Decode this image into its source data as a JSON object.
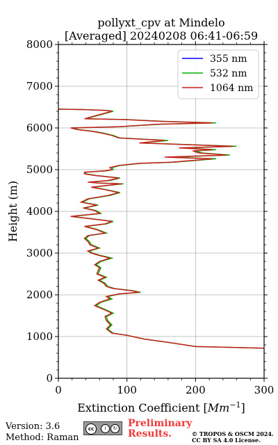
{
  "title_line1": "pollyxt_cpv at Mindelo",
  "title_line2": "[Averaged] 20240208 06:41-06:59",
  "footer": {
    "version": "Version: 3.6",
    "method": "Method: Raman",
    "preliminary": [
      "Preliminary",
      "Results."
    ],
    "copyright": [
      "© TROPOS & OSCM 2024.",
      "CC BY SA 4.0 License."
    ],
    "license_badge_icon": "cc-by-sa-icon"
  },
  "chart_data": {
    "type": "line",
    "xlabel": "Extinction Coefficient [Mm⁻¹]",
    "ylabel": "Height (m)",
    "xlim": [
      0,
      300
    ],
    "ylim": [
      0,
      8000
    ],
    "xticks": [
      0,
      100,
      200,
      300
    ],
    "yticks": [
      0,
      1000,
      2000,
      3000,
      4000,
      5000,
      6000,
      7000,
      8000
    ],
    "grid": true,
    "legend_position": "top-right",
    "series": [
      {
        "name": "355 nm",
        "color": "#0000ff",
        "x": [],
        "y": []
      },
      {
        "name": "532 nm",
        "color": "#00b400",
        "x": [
          300,
          200,
          160,
          125,
          108,
          100,
          80,
          72,
          78,
          72,
          70,
          80,
          68,
          55,
          62,
          78,
          72,
          90,
          120,
          108,
          82,
          72,
          68,
          60,
          70,
          58,
          60,
          62,
          55,
          62,
          78,
          60,
          50,
          45,
          60,
          48,
          45,
          40,
          45,
          70,
          58,
          40,
          70,
          80,
          50,
          20,
          62,
          55,
          38,
          58,
          35,
          45,
          75,
          90,
          70,
          50,
          72,
          95,
          60,
          45,
          75,
          90,
          55,
          40,
          40,
          70,
          80,
          78,
          90,
          120,
          170,
          200,
          230,
          160,
          250,
          210,
          200,
          230,
          180,
          260,
          190,
          120,
          160,
          90,
          80,
          65,
          50,
          30,
          20,
          90,
          120,
          150,
          230,
          150,
          100,
          40,
          80,
          70,
          40,
          0
        ],
        "y": [
          720,
          760,
          860,
          940,
          1000,
          1030,
          1080,
          1180,
          1280,
          1380,
          1480,
          1560,
          1650,
          1740,
          1820,
          1900,
          1960,
          2020,
          2060,
          2100,
          2150,
          2200,
          2280,
          2350,
          2420,
          2500,
          2580,
          2650,
          2720,
          2800,
          2880,
          2950,
          3000,
          3050,
          3120,
          3200,
          3280,
          3350,
          3420,
          3480,
          3560,
          3640,
          3700,
          3760,
          3820,
          3880,
          3950,
          4020,
          4080,
          4150,
          4220,
          4300,
          4380,
          4450,
          4520,
          4580,
          4620,
          4660,
          4680,
          4700,
          4740,
          4800,
          4860,
          4900,
          4940,
          4970,
          5000,
          5050,
          5100,
          5150,
          5180,
          5220,
          5260,
          5300,
          5350,
          5400,
          5450,
          5480,
          5520,
          5560,
          5600,
          5640,
          5700,
          5760,
          5820,
          5880,
          5920,
          5960,
          6000,
          6030,
          6060,
          6090,
          6120,
          6160,
          6200,
          6220,
          6400,
          6420,
          6440,
          6450
        ]
      },
      {
        "name": "1064 nm",
        "color": "#c81e1e",
        "x": [
          300,
          200,
          160,
          125,
          108,
          100,
          78,
          70,
          76,
          70,
          68,
          78,
          66,
          53,
          60,
          75,
          70,
          88,
          118,
          106,
          80,
          70,
          66,
          58,
          68,
          56,
          58,
          60,
          53,
          60,
          75,
          58,
          48,
          43,
          58,
          46,
          43,
          38,
          43,
          68,
          56,
          38,
          68,
          78,
          48,
          18,
          60,
          53,
          36,
          56,
          33,
          43,
          72,
          88,
          68,
          48,
          70,
          92,
          58,
          43,
          72,
          88,
          53,
          38,
          38,
          68,
          78,
          75,
          88,
          116,
          165,
          196,
          225,
          155,
          245,
          205,
          196,
          225,
          176,
          255,
          186,
          118,
          155,
          88,
          78,
          62,
          48,
          28,
          18,
          88,
          118,
          145,
          225,
          145,
          98,
          38,
          78,
          68,
          38,
          0
        ],
        "y": [
          720,
          760,
          860,
          940,
          1000,
          1030,
          1080,
          1180,
          1280,
          1380,
          1480,
          1560,
          1650,
          1740,
          1820,
          1900,
          1960,
          2020,
          2060,
          2100,
          2150,
          2200,
          2280,
          2350,
          2420,
          2500,
          2580,
          2650,
          2720,
          2800,
          2880,
          2950,
          3000,
          3050,
          3120,
          3200,
          3280,
          3350,
          3420,
          3480,
          3560,
          3640,
          3700,
          3760,
          3820,
          3880,
          3950,
          4020,
          4080,
          4150,
          4220,
          4300,
          4380,
          4450,
          4520,
          4580,
          4620,
          4660,
          4680,
          4700,
          4740,
          4800,
          4860,
          4900,
          4940,
          4970,
          5000,
          5050,
          5100,
          5150,
          5180,
          5220,
          5260,
          5300,
          5350,
          5400,
          5450,
          5480,
          5520,
          5560,
          5600,
          5640,
          5700,
          5760,
          5820,
          5880,
          5920,
          5960,
          6000,
          6030,
          6060,
          6090,
          6120,
          6160,
          6200,
          6220,
          6400,
          6420,
          6440,
          6450
        ]
      }
    ]
  }
}
